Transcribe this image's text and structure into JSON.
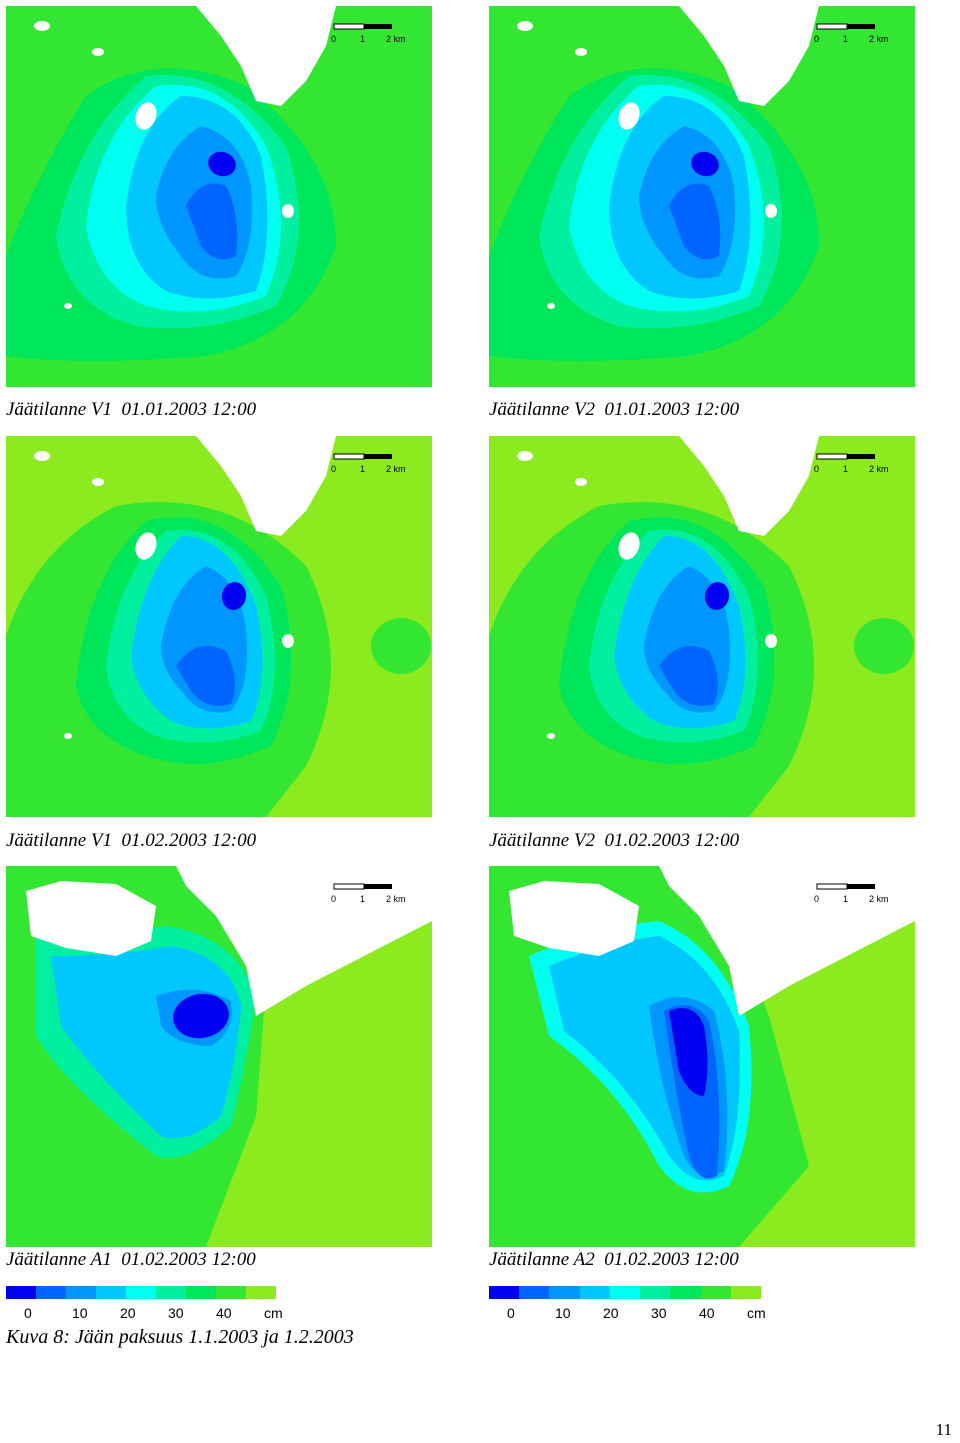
{
  "colors": {
    "land": "#ffffff",
    "ice_0_5": "#0000f0",
    "ice_5_10": "#0064ff",
    "ice_10_15": "#0096ff",
    "ice_15_20": "#00c8ff",
    "ice_20_25": "#00fff0",
    "ice_25_30": "#00f0a0",
    "ice_30_35": "#00e65a",
    "ice_35_40": "#32e632",
    "ice_40_plus": "#8ceb1e"
  },
  "scale_bar": {
    "labels": [
      "0",
      "1",
      "2 km"
    ]
  },
  "panels": [
    {
      "caption": "Jäätilanne V1  01.01.2003 12:00",
      "variant": "jan"
    },
    {
      "caption": "Jäätilanne V2  01.01.2003 12:00",
      "variant": "jan"
    },
    {
      "caption": "Jäätilanne V1  01.02.2003 12:00",
      "variant": "feb"
    },
    {
      "caption": "Jäätilanne V2  01.02.2003 12:00",
      "variant": "feb"
    },
    {
      "caption": "Jäätilanne A1  01.02.2003 12:00",
      "variant": "a1"
    },
    {
      "caption": "Jäätilanne A2  01.02.2003 12:00",
      "variant": "a2"
    }
  ],
  "legend": {
    "ticks": [
      "0",
      "10",
      "20",
      "30",
      "40",
      "cm"
    ],
    "swatches": [
      "#0000f0",
      "#0064ff",
      "#0096ff",
      "#00c8ff",
      "#00fff0",
      "#00f0a0",
      "#00e65a",
      "#32e632",
      "#8ceb1e"
    ]
  },
  "figure_caption": "Kuva 8: Jään paksuus 1.1.2003 ja 1.2.2003",
  "page_number": "11"
}
